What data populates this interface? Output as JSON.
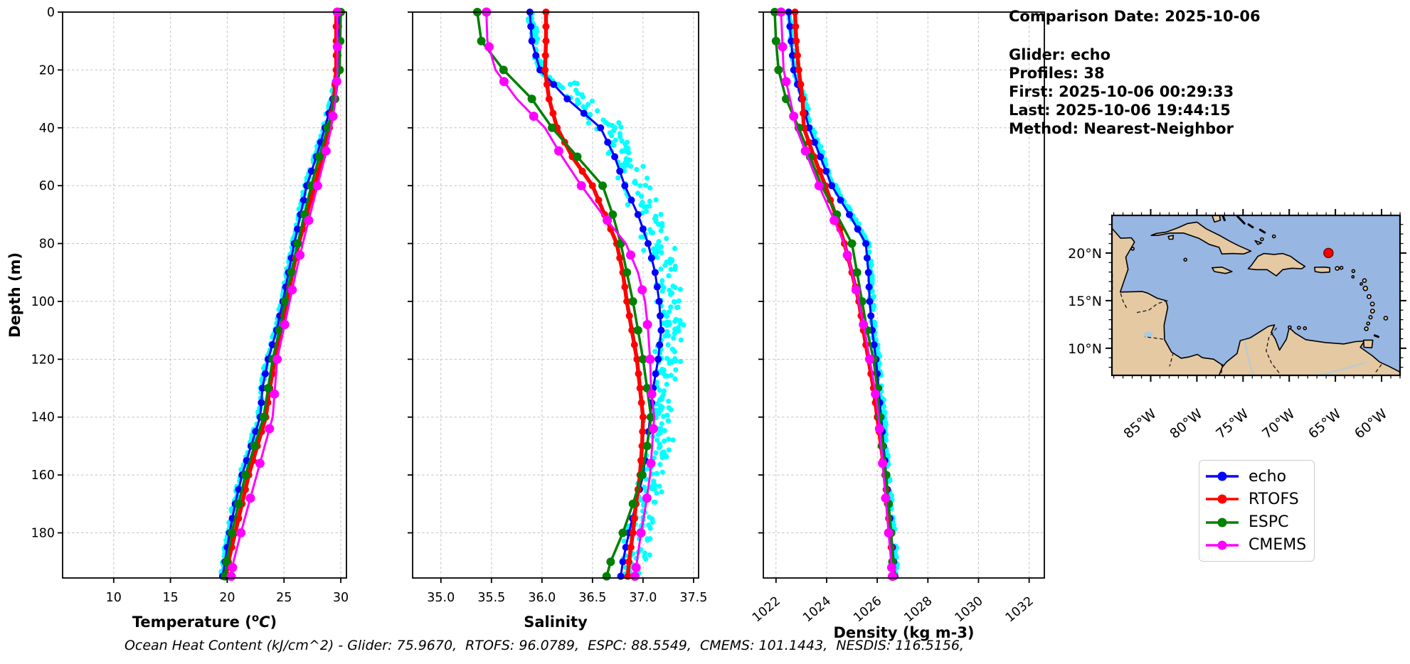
{
  "info_panel": {
    "comparison_date": "Comparison Date: 2025-10-06",
    "glider": "Glider: echo",
    "profiles": "Profiles: 38",
    "first": "First: 2025-10-06 00:29:33",
    "last": "Last: 2025-10-06 19:44:15",
    "method": "Method: Nearest-Neighbor"
  },
  "footer": {
    "ohc_text": "Ocean Heat Content (kJ/cm^2) - Glider: 75.9670,  RTOFS: 96.0789,  ESPC: 88.5549,  CMEMS: 101.1443,  NESDIS: 116.5156,"
  },
  "legend": {
    "items": [
      {
        "label": "echo",
        "color": "#0000ff"
      },
      {
        "label": "RTOFS",
        "color": "#ff0000"
      },
      {
        "label": "ESPC",
        "color": "#008000"
      },
      {
        "label": "CMEMS",
        "color": "#ff00ff"
      }
    ]
  },
  "map": {
    "ocean_color": "#97b6e2",
    "land_color": "#e4c9a2",
    "river_color": "#a9cbe6",
    "marker": {
      "lon": -65.75,
      "lat": 20.0,
      "color": "#ff0000"
    },
    "lon_range": [
      -89.2,
      -58.0
    ],
    "lat_range": [
      7.15,
      23.95
    ],
    "lon_ticks": [
      {
        "v": -85,
        "label": "85°W"
      },
      {
        "v": -80,
        "label": "80°W"
      },
      {
        "v": -75,
        "label": "75°W"
      },
      {
        "v": -70,
        "label": "70°W"
      },
      {
        "v": -65,
        "label": "65°W"
      },
      {
        "v": -60,
        "label": "60°W"
      }
    ],
    "lat_ticks": [
      {
        "v": 20,
        "label": "20°N"
      },
      {
        "v": 15,
        "label": "15°N"
      },
      {
        "v": 10,
        "label": "10°N"
      }
    ]
  },
  "chart_data": [
    {
      "type": "line",
      "name": "temperature-profile",
      "xlabel_parts": {
        "pre": "Temperature (",
        "sup": "o",
        "italic": "C",
        "post": ")"
      },
      "xlabel": "Temperature (°C)",
      "ylabel": "Depth (m)",
      "show_ytick_labels": true,
      "xlim": [
        5.5,
        30.5
      ],
      "ylim": [
        0,
        195.6
      ],
      "xtick_rotation": 0,
      "xticks": [
        {
          "v": 10,
          "label": "10"
        },
        {
          "v": 15,
          "label": "15"
        },
        {
          "v": 20,
          "label": "20"
        },
        {
          "v": 25,
          "label": "25"
        },
        {
          "v": 30,
          "label": "30"
        }
      ],
      "yticks": [
        {
          "v": 0,
          "label": "0"
        },
        {
          "v": 20,
          "label": "20"
        },
        {
          "v": 40,
          "label": "40"
        },
        {
          "v": 60,
          "label": "60"
        },
        {
          "v": 80,
          "label": "80"
        },
        {
          "v": 100,
          "label": "100"
        },
        {
          "v": 120,
          "label": "120"
        },
        {
          "v": 140,
          "label": "140"
        },
        {
          "v": 160,
          "label": "160"
        },
        {
          "v": 180,
          "label": "180"
        }
      ],
      "depths": [
        0,
        10,
        20,
        30,
        40,
        50,
        60,
        70,
        80,
        90,
        100,
        110,
        120,
        130,
        140,
        150,
        160,
        170,
        180,
        190,
        195
      ],
      "series": [
        {
          "name": "echo",
          "color": "#0000ff",
          "values": [
            29.8,
            29.8,
            29.7,
            29.3,
            28.6,
            27.85,
            27.0,
            26.45,
            25.9,
            25.4,
            24.9,
            24.35,
            23.6,
            23.1,
            22.9,
            22.1,
            21.3,
            20.7,
            20.2,
            19.8,
            19.6
          ]
        },
        {
          "name": "RTOFS",
          "color": "#ff0000",
          "values": [
            29.6,
            29.6,
            29.6,
            29.4,
            29.0,
            28.4,
            27.7,
            27.0,
            26.3,
            25.75,
            25.25,
            24.7,
            24.2,
            23.75,
            23.4,
            22.65,
            21.9,
            21.3,
            20.7,
            20.1,
            19.9
          ]
        },
        {
          "name": "ESPC",
          "color": "#008000",
          "values": [
            30.0,
            29.95,
            29.9,
            29.5,
            28.85,
            28.1,
            27.4,
            26.8,
            26.2,
            25.65,
            25.1,
            24.6,
            24.0,
            23.6,
            23.2,
            22.4,
            21.6,
            21.0,
            20.4,
            19.95,
            19.8
          ]
        },
        {
          "name": "CMEMS",
          "color": "#ff00ff",
          "values": [
            29.7,
            29.7,
            29.7,
            29.55,
            29.15,
            28.6,
            27.95,
            27.3,
            26.65,
            26.05,
            25.5,
            24.95,
            24.4,
            24.2,
            24.0,
            23.3,
            22.6,
            21.9,
            21.2,
            20.55,
            20.35
          ]
        }
      ],
      "scatter": {
        "name": "glider observations",
        "color": "#00ffff",
        "count": 380,
        "offset": -0.1,
        "spread": 0.16,
        "top_offset": -0.02,
        "top_spread": 0.06
      }
    },
    {
      "type": "line",
      "name": "salinity-profile",
      "xlabel": "Salinity",
      "ylabel": "",
      "show_ytick_labels": false,
      "xlim": [
        34.72,
        37.55
      ],
      "ylim": [
        0,
        195.6
      ],
      "xtick_rotation": 0,
      "xticks": [
        {
          "v": 35.0,
          "label": "35.0"
        },
        {
          "v": 35.5,
          "label": "35.5"
        },
        {
          "v": 36.0,
          "label": "36.0"
        },
        {
          "v": 36.5,
          "label": "36.5"
        },
        {
          "v": 37.0,
          "label": "37.0"
        },
        {
          "v": 37.5,
          "label": "37.5"
        }
      ],
      "yticks": [
        {
          "v": 0,
          "label": "0"
        },
        {
          "v": 20,
          "label": "20"
        },
        {
          "v": 40,
          "label": "40"
        },
        {
          "v": 60,
          "label": "60"
        },
        {
          "v": 80,
          "label": "80"
        },
        {
          "v": 100,
          "label": "100"
        },
        {
          "v": 120,
          "label": "120"
        },
        {
          "v": 140,
          "label": "140"
        },
        {
          "v": 160,
          "label": "160"
        },
        {
          "v": 180,
          "label": "180"
        }
      ],
      "depths": [
        0,
        10,
        20,
        30,
        40,
        50,
        60,
        70,
        80,
        90,
        100,
        110,
        120,
        130,
        140,
        150,
        160,
        170,
        180,
        190,
        195
      ],
      "series": [
        {
          "name": "echo",
          "color": "#0000ff",
          "values": [
            35.88,
            35.9,
            35.98,
            36.25,
            36.58,
            36.72,
            36.82,
            36.95,
            37.05,
            37.12,
            37.16,
            37.18,
            37.15,
            37.1,
            37.07,
            37.04,
            37.0,
            36.93,
            36.86,
            36.8,
            36.78
          ]
        },
        {
          "name": "RTOFS",
          "color": "#ff0000",
          "values": [
            36.04,
            36.04,
            36.03,
            36.07,
            36.15,
            36.3,
            36.5,
            36.62,
            36.74,
            36.8,
            36.84,
            36.89,
            36.94,
            36.97,
            37.0,
            36.99,
            36.97,
            36.93,
            36.9,
            36.86,
            36.85
          ]
        },
        {
          "name": "ESPC",
          "color": "#008000",
          "values": [
            35.36,
            35.4,
            35.62,
            35.9,
            36.1,
            36.35,
            36.6,
            36.7,
            36.78,
            36.84,
            36.9,
            36.95,
            37.0,
            37.04,
            37.08,
            37.04,
            36.99,
            36.9,
            36.8,
            36.68,
            36.64
          ]
        },
        {
          "name": "CMEMS",
          "color": "#ff00ff",
          "values": [
            35.45,
            35.46,
            35.54,
            35.75,
            36.03,
            36.2,
            36.39,
            36.6,
            36.83,
            36.95,
            37.02,
            37.05,
            37.07,
            37.08,
            37.11,
            37.09,
            37.07,
            37.03,
            36.98,
            36.94,
            36.92
          ]
        }
      ],
      "scatter": {
        "name": "glider observations",
        "color": "#00ffff",
        "count": 430,
        "offset": 0.1,
        "spread": 0.17,
        "top_offset": 0.02,
        "top_spread": 0.05
      }
    },
    {
      "type": "line",
      "name": "density-profile",
      "xlabel": "Density (kg m-3)",
      "ylabel": "",
      "show_ytick_labels": false,
      "xlim": [
        1021.5,
        1032.6
      ],
      "ylim": [
        0,
        195.6
      ],
      "xtick_rotation": -40,
      "xticks": [
        {
          "v": 1022,
          "label": "1022"
        },
        {
          "v": 1024,
          "label": "1024"
        },
        {
          "v": 1026,
          "label": "1026"
        },
        {
          "v": 1028,
          "label": "1028"
        },
        {
          "v": 1030,
          "label": "1030"
        },
        {
          "v": 1032,
          "label": "1032"
        }
      ],
      "yticks": [
        {
          "v": 0,
          "label": "0"
        },
        {
          "v": 20,
          "label": "20"
        },
        {
          "v": 40,
          "label": "40"
        },
        {
          "v": 60,
          "label": "60"
        },
        {
          "v": 80,
          "label": "80"
        },
        {
          "v": 100,
          "label": "100"
        },
        {
          "v": 120,
          "label": "120"
        },
        {
          "v": 140,
          "label": "140"
        },
        {
          "v": 160,
          "label": "160"
        },
        {
          "v": 180,
          "label": "180"
        }
      ],
      "depths": [
        0,
        10,
        20,
        30,
        40,
        50,
        60,
        70,
        80,
        90,
        100,
        110,
        120,
        130,
        140,
        150,
        160,
        170,
        180,
        190,
        195
      ],
      "series": [
        {
          "name": "echo",
          "color": "#0000ff",
          "values": [
            1022.5,
            1022.6,
            1022.7,
            1023.0,
            1023.3,
            1023.75,
            1024.2,
            1024.9,
            1025.55,
            1025.65,
            1025.7,
            1025.8,
            1025.95,
            1026.05,
            1026.15,
            1026.25,
            1026.35,
            1026.45,
            1026.55,
            1026.65,
            1026.7
          ]
        },
        {
          "name": "RTOFS",
          "color": "#ff0000",
          "values": [
            1022.75,
            1022.8,
            1022.9,
            1023.05,
            1023.1,
            1023.5,
            1023.95,
            1024.35,
            1024.7,
            1025.0,
            1025.27,
            1025.45,
            1025.65,
            1025.85,
            1026.0,
            1026.15,
            1026.3,
            1026.4,
            1026.5,
            1026.6,
            1026.65
          ]
        },
        {
          "name": "ESPC",
          "color": "#008000",
          "values": [
            1021.95,
            1022.0,
            1022.1,
            1022.4,
            1022.9,
            1023.35,
            1023.8,
            1024.4,
            1025.0,
            1025.2,
            1025.4,
            1025.6,
            1025.85,
            1026.0,
            1026.1,
            1026.2,
            1026.35,
            1026.45,
            1026.55,
            1026.6,
            1026.65
          ]
        },
        {
          "name": "CMEMS",
          "color": "#ff00ff",
          "values": [
            1022.2,
            1022.25,
            1022.3,
            1022.55,
            1022.8,
            1023.25,
            1023.7,
            1024.2,
            1024.7,
            1025.0,
            1025.27,
            1025.5,
            1025.7,
            1025.9,
            1026.05,
            1026.15,
            1026.25,
            1026.35,
            1026.45,
            1026.55,
            1026.6
          ]
        }
      ],
      "scatter": {
        "name": "glider observations",
        "color": "#00ffff",
        "count": 380,
        "offset": 0.08,
        "spread": 0.1,
        "top_offset": 0.02,
        "top_spread": 0.05
      }
    }
  ]
}
